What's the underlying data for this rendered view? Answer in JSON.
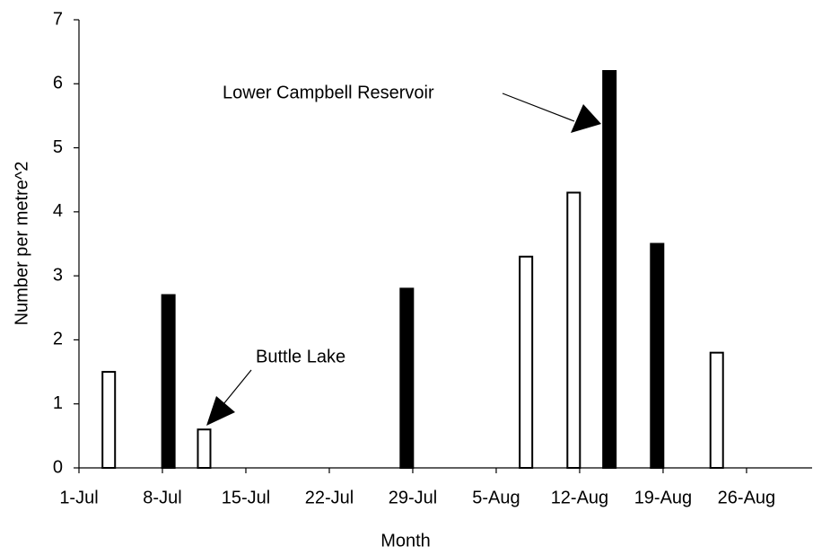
{
  "chart_data": {
    "type": "bar",
    "xlabel": "Month",
    "ylabel": "Number per metre^2",
    "xlim": [
      0,
      61.5
    ],
    "ylim": [
      0,
      7
    ],
    "xticks": [
      {
        "value": 0,
        "label": "1-Jul"
      },
      {
        "value": 7,
        "label": "8-Jul"
      },
      {
        "value": 14,
        "label": "15-Jul"
      },
      {
        "value": 21,
        "label": "22-Jul"
      },
      {
        "value": 28,
        "label": "29-Jul"
      },
      {
        "value": 35,
        "label": "5-Aug"
      },
      {
        "value": 42,
        "label": "12-Aug"
      },
      {
        "value": 49,
        "label": "19-Aug"
      },
      {
        "value": 56,
        "label": "26-Aug"
      }
    ],
    "yticks": [
      0,
      1,
      2,
      3,
      4,
      5,
      6,
      7
    ],
    "series": [
      {
        "name": "Buttle Lake",
        "color": "#ffffff",
        "x": [
          2.5,
          10.5,
          37.5,
          41.5,
          53.5
        ],
        "values": [
          1.5,
          0.6,
          3.3,
          4.3,
          1.8
        ]
      },
      {
        "name": "Lower Campbell Reservoir",
        "color": "#000000",
        "x": [
          7.5,
          27.5,
          44.5,
          48.5
        ],
        "values": [
          2.7,
          2.8,
          6.2,
          3.5
        ]
      }
    ]
  }
}
